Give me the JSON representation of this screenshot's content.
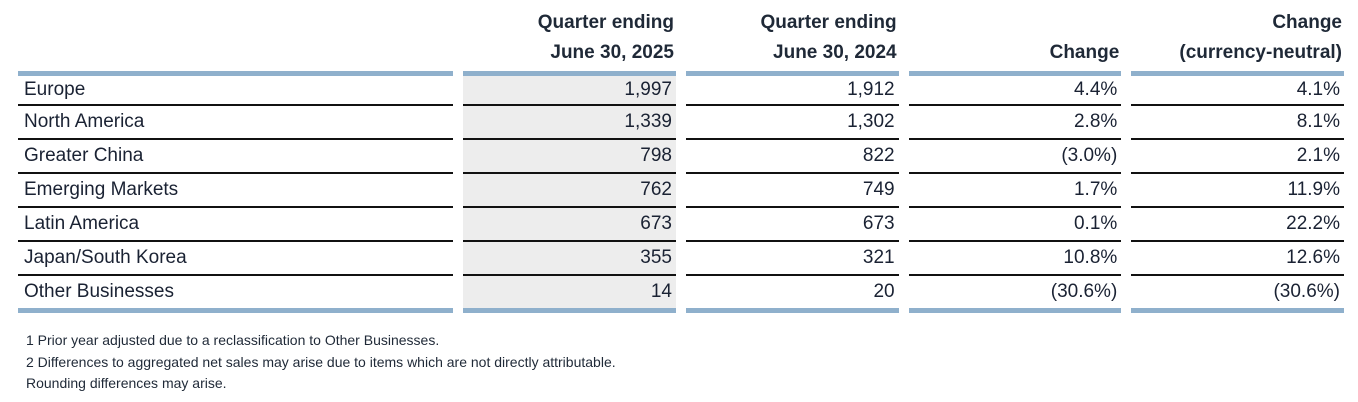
{
  "table": {
    "headers": {
      "col1": [
        "Quarter ending",
        "June 30, 2025"
      ],
      "col2": [
        "Quarter ending",
        "June 30, 2024"
      ],
      "col3": [
        "",
        "Change"
      ],
      "col4": [
        "Change",
        "(currency-neutral)"
      ]
    },
    "rows": [
      {
        "region": "Europe",
        "q2025": "1,997",
        "q2024": "1,912",
        "change": "4.4%",
        "change_cn": "4.1%"
      },
      {
        "region": "North America",
        "q2025": "1,339",
        "q2024": "1,302",
        "change": "2.8%",
        "change_cn": "8.1%"
      },
      {
        "region": "Greater China",
        "q2025": "798",
        "q2024": "822",
        "change": "(3.0%)",
        "change_cn": "2.1%"
      },
      {
        "region": "Emerging Markets",
        "q2025": "762",
        "q2024": "749",
        "change": "1.7%",
        "change_cn": "11.9%"
      },
      {
        "region": "Latin America",
        "q2025": "673",
        "q2024": "673",
        "change": "0.1%",
        "change_cn": "22.2%"
      },
      {
        "region": "Japan/South Korea",
        "q2025": "355",
        "q2024": "321",
        "change": "10.8%",
        "change_cn": "12.6%"
      },
      {
        "region": "Other Businesses",
        "q2025": "14",
        "q2024": "20",
        "change": "(30.6%)",
        "change_cn": "(30.6%)"
      }
    ]
  },
  "footnotes": [
    "1 Prior year adjusted due to a reclassification to Other Businesses.",
    "2 Differences to aggregated net sales may arise due to items which are not directly attributable.",
    "Rounding differences may arise."
  ],
  "colors": {
    "rule": "#8fb0cc",
    "shade": "#ededed",
    "text": "#1f2937"
  }
}
